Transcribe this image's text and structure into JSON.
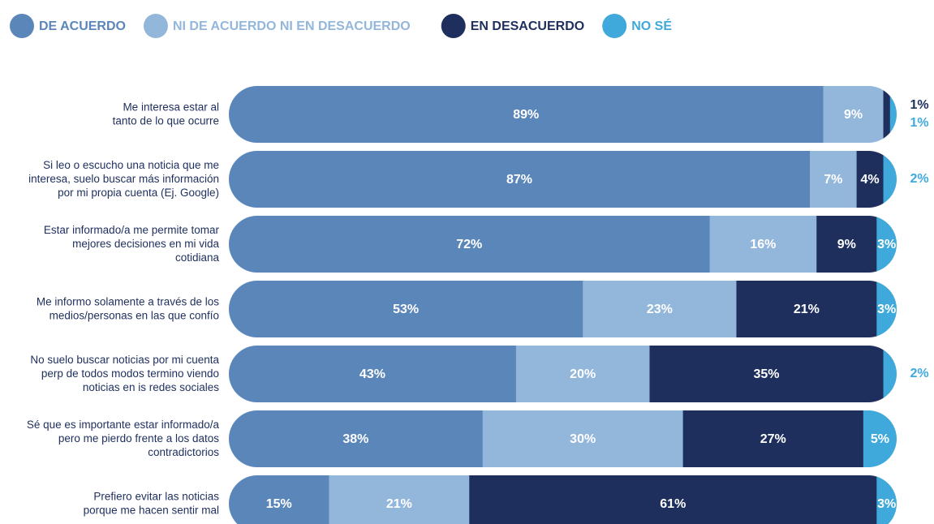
{
  "chart_data": {
    "type": "stacked-bar-horizontal",
    "categories": [
      "Me interesa estar al\ntanto de lo que ocurre",
      "Si leo o escucho una noticia que me\ninteresa, suelo buscar más información\npor mi propia cuenta (Ej. Google)",
      "Estar informado/a me permite tomar\nmejores decisiones en mi vida\ncotidiana",
      "Me informo solamente a través de los\nmedios/personas en las que confío",
      "No suelo buscar noticias por mi cuenta\nperp de todos modos termino viendo\nnoticias en is redes sociales",
      "Sé que es importante estar informado/a\npero me pierdo frente a los datos\ncontradictorios",
      "Prefiero evitar las noticias\nporque me hacen sentir mal"
    ],
    "series": [
      {
        "name": "DE ACUERDO",
        "color": "#5b86b9",
        "values": [
          89,
          87,
          72,
          53,
          43,
          38,
          15
        ],
        "value_labels": [
          "89%",
          "87%",
          "72%",
          "53%",
          "43%",
          "38%",
          "15%"
        ]
      },
      {
        "name": "NI DE ACUERDO NI EN DESACUERDO",
        "color": "#93b6db",
        "values": [
          9,
          7,
          16,
          23,
          20,
          30,
          21
        ],
        "value_labels": [
          "9%",
          "7%",
          "16%",
          "23%",
          "20%",
          "30%",
          "21%"
        ]
      },
      {
        "name": "EN DESACUERDO",
        "color": "#1e2f5e",
        "values": [
          1,
          4,
          9,
          21,
          35,
          27,
          61
        ],
        "value_labels": [
          "1%",
          "4%",
          "9%",
          "21%",
          "35%",
          "27%",
          "61%"
        ]
      },
      {
        "name": "NO SÉ",
        "color": "#3fa9dc",
        "values": [
          1,
          2,
          3,
          3,
          2,
          5,
          3
        ],
        "value_labels": [
          "1%",
          "2%",
          "3%",
          "3%",
          "2%",
          "5%",
          "3%"
        ]
      }
    ],
    "xlim": [
      0,
      100
    ],
    "legend": "top-left"
  }
}
